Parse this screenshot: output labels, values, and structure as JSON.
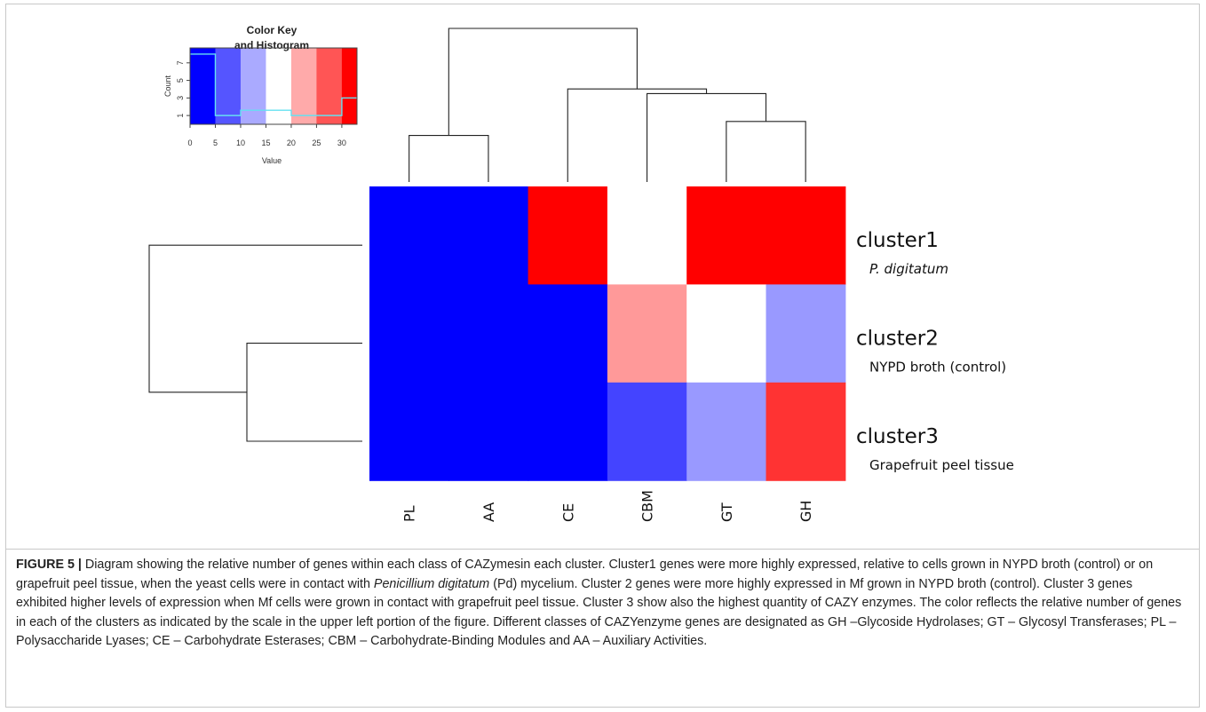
{
  "chart_data": {
    "type": "heatmap",
    "columns": [
      "PL",
      "AA",
      "CE",
      "CBM",
      "GT",
      "GH"
    ],
    "rows": [
      {
        "name": "cluster1",
        "subtitle": "P. digitatum",
        "subtitle_italic": true,
        "values": [
          0,
          0,
          30,
          15,
          30,
          30
        ]
      },
      {
        "name": "cluster2",
        "subtitle": "NYPD broth (control)",
        "subtitle_italic": false,
        "values": [
          0,
          0,
          0,
          21,
          15,
          9
        ]
      },
      {
        "name": "cluster3",
        "subtitle": "Grapefruit peel tissue",
        "subtitle_italic": false,
        "values": [
          0,
          0,
          0,
          4,
          9,
          27
        ]
      }
    ],
    "color_key": {
      "title_line1": "Color Key",
      "title_line2": "and Histogram",
      "xlabel": "Value",
      "ylabel": "Count",
      "x_ticks": [
        "0",
        "5",
        "10",
        "15",
        "20",
        "25",
        "30"
      ],
      "y_ticks": [
        "1",
        "3",
        "5",
        "7"
      ],
      "xlim": [
        0,
        33
      ],
      "ylim": [
        0,
        8.7
      ],
      "bins": [
        0,
        5,
        10,
        15,
        20,
        25,
        30,
        33
      ],
      "bin_colors": [
        "#0000ff",
        "#5555ff",
        "#aaaaff",
        "#ffffff",
        "#ffaaaa",
        "#ff5555",
        "#ff0000"
      ],
      "histogram_counts": [
        8,
        1,
        1.6,
        1.6,
        1,
        1,
        3
      ]
    },
    "color_scale": {
      "low": "#0000ff",
      "mid": "#ffffff",
      "high": "#ff0000",
      "min": 0,
      "max": 30
    },
    "column_dendrogram": [
      {
        "merge": [
          "PL",
          "AA"
        ],
        "height": 1
      },
      {
        "merge": [
          "GT",
          "GH"
        ],
        "height": 1.3
      },
      {
        "merge": [
          "CBM",
          "GT+GH"
        ],
        "height": 1.9
      },
      {
        "merge": [
          "CE",
          "CBM+GT+GH"
        ],
        "height": 2.0
      },
      {
        "merge": [
          "PL+AA",
          "CE+CBM+GT+GH"
        ],
        "height": 3.3
      }
    ],
    "row_dendrogram": [
      {
        "merge": [
          "cluster2",
          "cluster3"
        ],
        "height": 1.3
      },
      {
        "merge": [
          "cluster1",
          "cluster2+cluster3"
        ],
        "height": 2.4
      }
    ]
  },
  "caption": {
    "label": "FIGURE 5 |",
    "segments": [
      {
        "text": " Diagram showing the relative number of genes within each class of CAZymesin each cluster. Cluster1 genes were more highly expressed, relative to cells grown in NYPD broth (control) or on grapefruit peel tissue, when the yeast cells were in contact with ",
        "italic": false
      },
      {
        "text": "Penicillium digitatum",
        "italic": true
      },
      {
        "text": " (Pd) mycelium. Cluster 2 genes were more highly expressed in Mf grown in NYPD broth (control). Cluster 3 genes exhibited higher levels of expression when Mf cells were grown in contact with grapefruit peel tissue. Cluster 3 show also the highest quantity of CAZY enzymes. The color reflects the relative number of genes in each of the clusters as indicated by the scale in the upper left portion of the figure. Different classes of CAZYenzyme genes are designated as GH –Glycoside Hydrolases; GT – Glycosyl Transferases; PL – Polysaccharide Lyases; CE – Carbohydrate Esterases; CBM – Carbohydrate-Binding Modules and AA – Auxiliary Activities.",
        "italic": false
      }
    ]
  }
}
